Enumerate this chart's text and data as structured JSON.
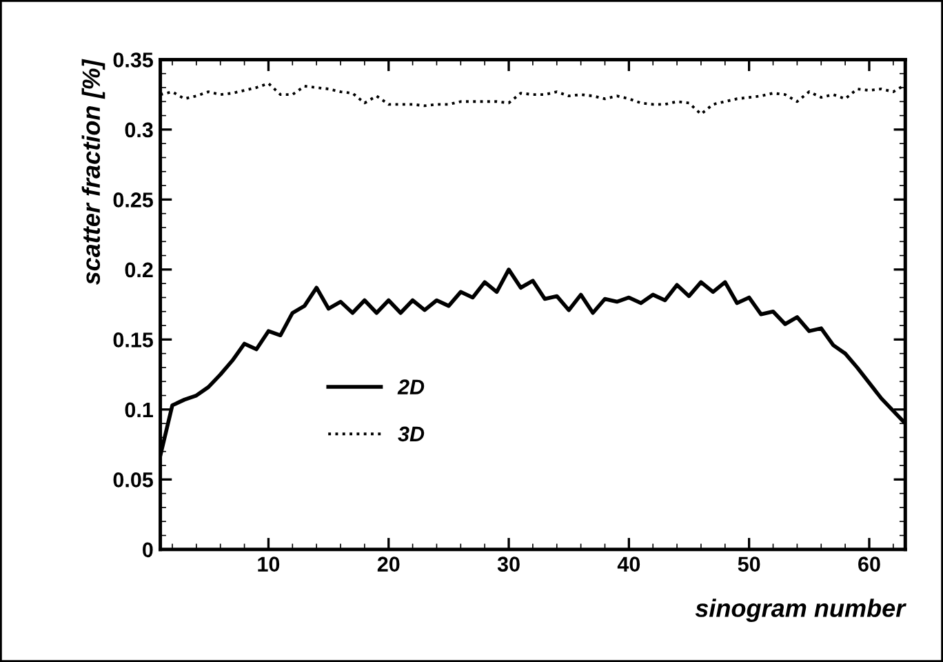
{
  "chart_data": {
    "type": "line",
    "xlabel": "sinogram number",
    "ylabel": "scatter fraction [%]",
    "x": [
      1,
      2,
      3,
      4,
      5,
      6,
      7,
      8,
      9,
      10,
      11,
      12,
      13,
      14,
      15,
      16,
      17,
      18,
      19,
      20,
      21,
      22,
      23,
      24,
      25,
      26,
      27,
      28,
      29,
      30,
      31,
      32,
      33,
      34,
      35,
      36,
      37,
      38,
      39,
      40,
      41,
      42,
      43,
      44,
      45,
      46,
      47,
      48,
      49,
      50,
      51,
      52,
      53,
      54,
      55,
      56,
      57,
      58,
      59,
      60,
      61,
      62,
      63
    ],
    "series": [
      {
        "name": "2D",
        "color": "#000000",
        "line_style": "solid",
        "values": [
          0.067,
          0.103,
          0.107,
          0.11,
          0.116,
          0.125,
          0.135,
          0.147,
          0.143,
          0.156,
          0.153,
          0.169,
          0.174,
          0.187,
          0.172,
          0.177,
          0.169,
          0.178,
          0.169,
          0.178,
          0.169,
          0.178,
          0.171,
          0.178,
          0.174,
          0.184,
          0.18,
          0.191,
          0.184,
          0.2,
          0.187,
          0.192,
          0.179,
          0.181,
          0.171,
          0.182,
          0.169,
          0.179,
          0.177,
          0.18,
          0.176,
          0.182,
          0.178,
          0.189,
          0.181,
          0.191,
          0.184,
          0.191,
          0.176,
          0.18,
          0.168,
          0.17,
          0.161,
          0.166,
          0.156,
          0.158,
          0.146,
          0.14,
          0.13,
          0.119,
          0.108,
          0.099,
          0.09
        ]
      },
      {
        "name": "3D",
        "color": "#000000",
        "line_style": "dotted",
        "values": [
          0.325,
          0.327,
          0.322,
          0.324,
          0.327,
          0.325,
          0.326,
          0.328,
          0.33,
          0.333,
          0.325,
          0.325,
          0.331,
          0.33,
          0.329,
          0.327,
          0.326,
          0.319,
          0.324,
          0.318,
          0.318,
          0.318,
          0.317,
          0.318,
          0.318,
          0.32,
          0.32,
          0.32,
          0.32,
          0.319,
          0.326,
          0.325,
          0.325,
          0.327,
          0.324,
          0.325,
          0.324,
          0.322,
          0.324,
          0.322,
          0.319,
          0.318,
          0.318,
          0.32,
          0.319,
          0.311,
          0.318,
          0.32,
          0.322,
          0.323,
          0.324,
          0.326,
          0.325,
          0.32,
          0.327,
          0.323,
          0.325,
          0.322,
          0.329,
          0.328,
          0.329,
          0.327,
          0.332
        ]
      }
    ],
    "xlim": [
      1,
      63
    ],
    "xticks": [
      10,
      20,
      30,
      40,
      50,
      60
    ],
    "ylim": [
      0,
      0.35
    ],
    "yticks": [
      0,
      0.05,
      0.1,
      0.15,
      0.2,
      0.25,
      0.3,
      0.35
    ],
    "grid": false,
    "legend": "left"
  }
}
